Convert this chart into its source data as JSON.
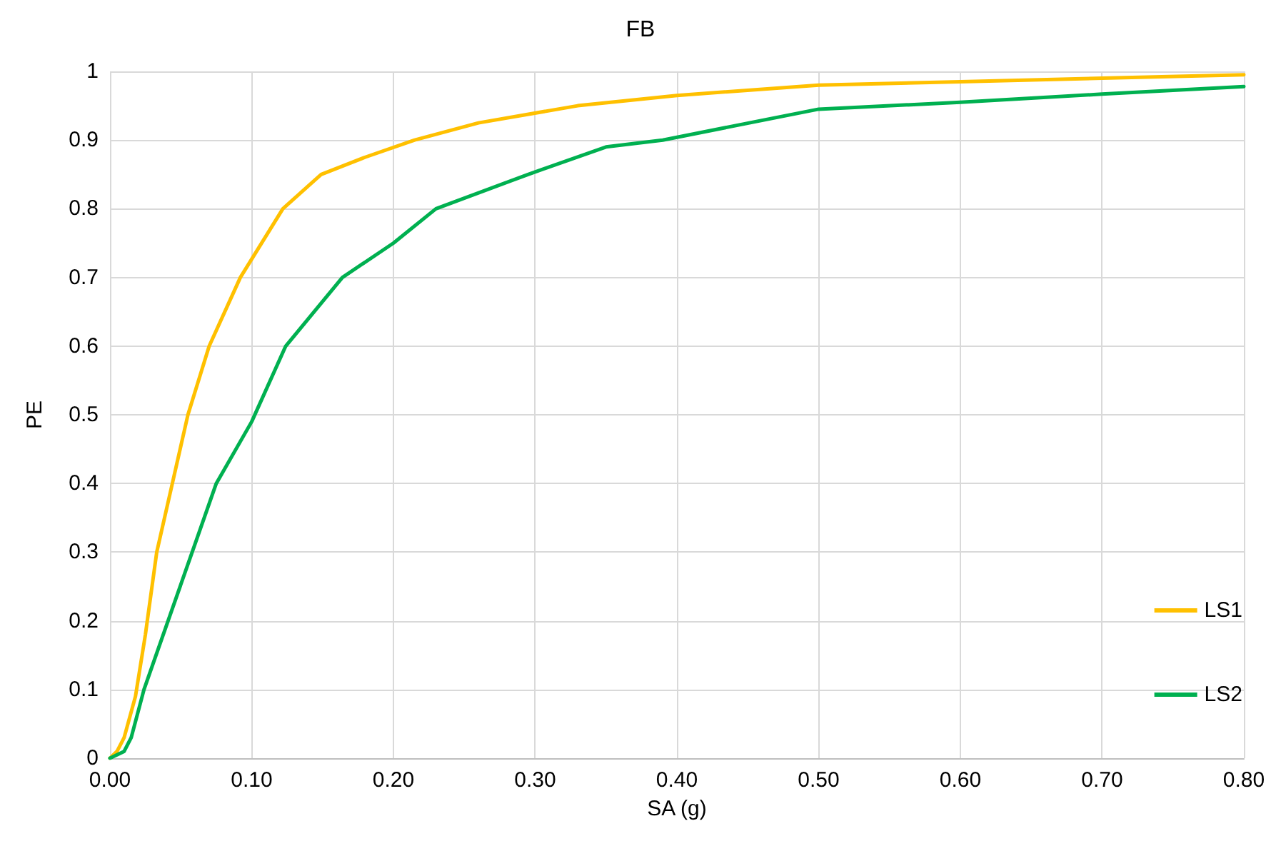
{
  "chart_data": {
    "type": "line",
    "title": "FB",
    "xlabel": "SA (g)",
    "ylabel": "PE",
    "series": [
      {
        "name": "LS1",
        "color": "#ffc000",
        "x": [
          0,
          0.005,
          0.01,
          0.018,
          0.025,
          0.033,
          0.044,
          0.055,
          0.07,
          0.092,
          0.122,
          0.149,
          0.18,
          0.215,
          0.26,
          0.33,
          0.4,
          0.5,
          0.6,
          0.7,
          0.8
        ],
        "values": [
          0,
          0.01,
          0.03,
          0.09,
          0.18,
          0.3,
          0.4,
          0.5,
          0.6,
          0.7,
          0.8,
          0.85,
          0.875,
          0.9,
          0.925,
          0.95,
          0.965,
          0.98,
          0.985,
          0.99,
          0.995
        ]
      },
      {
        "name": "LS2",
        "color": "#00b050",
        "x": [
          0,
          0.005,
          0.01,
          0.015,
          0.024,
          0.041,
          0.058,
          0.075,
          0.1,
          0.124,
          0.164,
          0.2,
          0.23,
          0.295,
          0.35,
          0.39,
          0.5,
          0.6,
          0.7,
          0.8
        ],
        "values": [
          0,
          0.005,
          0.01,
          0.03,
          0.1,
          0.2,
          0.3,
          0.4,
          0.49,
          0.6,
          0.7,
          0.75,
          0.8,
          0.85,
          0.89,
          0.9,
          0.945,
          0.955,
          0.967,
          0.978
        ]
      }
    ],
    "xlim": [
      0,
      0.8
    ],
    "xticks": [
      {
        "value": 0,
        "label": "0.00"
      },
      {
        "value": 0.1,
        "label": "0.10"
      },
      {
        "value": 0.2,
        "label": "0.20"
      },
      {
        "value": 0.3,
        "label": "0.30"
      },
      {
        "value": 0.4,
        "label": "0.40"
      },
      {
        "value": 0.5,
        "label": "0.50"
      },
      {
        "value": 0.6,
        "label": "0.60"
      },
      {
        "value": 0.7,
        "label": "0.70"
      },
      {
        "value": 0.8,
        "label": "0.80"
      }
    ],
    "ylim": [
      0,
      1
    ],
    "yticks": [
      0,
      0.1,
      0.2,
      0.3,
      0.4,
      0.5,
      0.6,
      0.7,
      0.8,
      0.9,
      1
    ],
    "grid": true,
    "legend": "right",
    "marker": "none",
    "line_style": "solid"
  }
}
